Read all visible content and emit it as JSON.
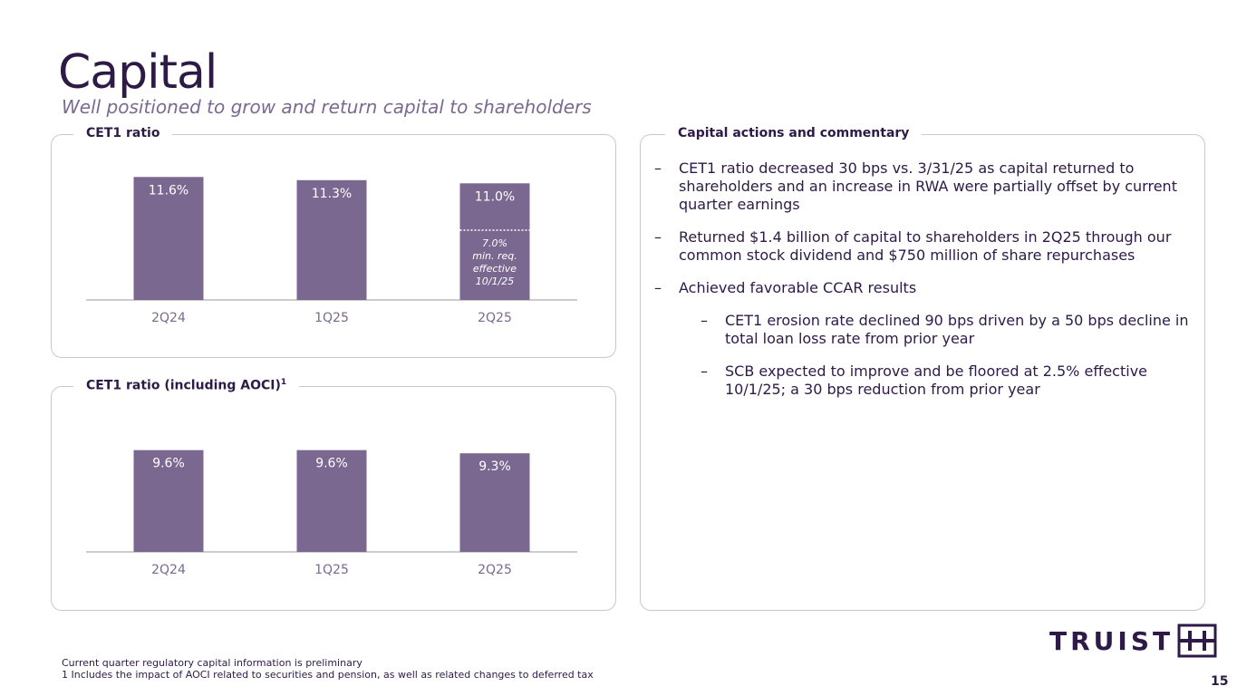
{
  "header": {
    "title": "Capital",
    "subtitle": "Well positioned to grow and return capital to shareholders"
  },
  "chart_data": [
    {
      "type": "bar",
      "title": "CET1 ratio",
      "categories": [
        "2Q24",
        "1Q25",
        "2Q25"
      ],
      "values": [
        11.6,
        11.3,
        11.0
      ],
      "value_labels": [
        "11.6%",
        "11.3%",
        "11.0%"
      ],
      "reference_line": {
        "value": 7.0,
        "category": "2Q25",
        "style": "dotted",
        "label_lines": [
          "7.0%",
          "min. req.",
          "effective",
          "10/1/25"
        ]
      },
      "color": "#7b6891",
      "ylim": [
        0,
        12
      ],
      "grid": false
    },
    {
      "type": "bar",
      "title": "CET1 ratio (including AOCI)",
      "title_sup": "1",
      "categories": [
        "2Q24",
        "1Q25",
        "2Q25"
      ],
      "values": [
        9.6,
        9.6,
        9.3
      ],
      "value_labels": [
        "9.6%",
        "9.6%",
        "9.3%"
      ],
      "color": "#7b6891",
      "ylim": [
        0,
        10
      ],
      "grid": false
    }
  ],
  "commentary": {
    "label": "Capital actions and commentary",
    "dash": "–",
    "bullets": [
      {
        "text": "CET1 ratio decreased 30 bps vs. 3/31/25 as capital returned to shareholders and an increase in RWA were partially offset by current quarter earnings",
        "level": 1
      },
      {
        "text": "Returned $1.4 billion of capital to shareholders in 2Q25 through our common stock dividend and $750 million of share repurchases",
        "level": 1
      },
      {
        "text": "Achieved favorable CCAR results",
        "level": 1
      },
      {
        "text": "CET1 erosion rate declined 90 bps driven by a 50 bps decline in total loan loss rate from prior year",
        "level": 2
      },
      {
        "text": "SCB expected to improve and be floored at 2.5% effective 10/1/25; a 30 bps reduction from prior year",
        "level": 2
      }
    ]
  },
  "footnotes": {
    "line1": "Current quarter regulatory capital information is preliminary",
    "line2": "1 Includes the impact of AOCI related to securities and pension, as well as related changes to deferred tax"
  },
  "logo": {
    "text": "TRUIST",
    "icon": "truist-logo-icon"
  },
  "page_number": "15",
  "colors": {
    "primary": "#2e1a47",
    "bar": "#7b6891",
    "border": "#c9c9c9",
    "axis": "#9a9a9a",
    "tick": "#7c6891"
  }
}
